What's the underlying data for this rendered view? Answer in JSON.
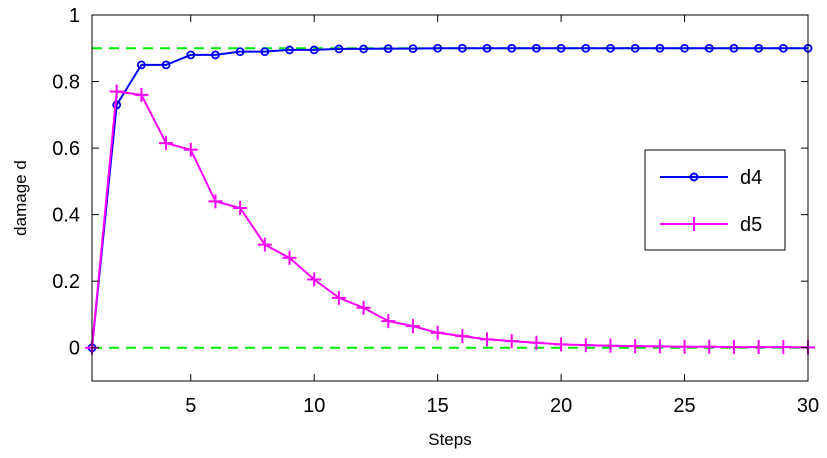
{
  "chart_data": {
    "type": "line",
    "title": "",
    "xlabel": "Steps",
    "ylabel": "damage d",
    "xlim": [
      1,
      30
    ],
    "ylim": [
      -0.1,
      1
    ],
    "xticks": [
      5,
      10,
      15,
      20,
      25,
      30
    ],
    "yticks": [
      0,
      0.2,
      0.4,
      0.6,
      0.8,
      1
    ],
    "xtick_labels": [
      "5",
      "10",
      "15",
      "20",
      "25",
      "30"
    ],
    "ytick_labels": [
      "0",
      "0.2",
      "0.4",
      "0.6",
      "0.8",
      "1"
    ],
    "grid": false,
    "legend_position": "right",
    "series": [
      {
        "name": "d4",
        "color": "#0000ff",
        "marker": "circle",
        "x": [
          1,
          2,
          3,
          4,
          5,
          6,
          7,
          8,
          9,
          10,
          11,
          12,
          13,
          14,
          15,
          16,
          17,
          18,
          19,
          20,
          21,
          22,
          23,
          24,
          25,
          26,
          27,
          28,
          29,
          30
        ],
        "y": [
          0,
          0.73,
          0.85,
          0.85,
          0.88,
          0.88,
          0.89,
          0.89,
          0.895,
          0.895,
          0.898,
          0.898,
          0.899,
          0.899,
          0.9,
          0.9,
          0.9,
          0.9,
          0.9,
          0.9,
          0.9,
          0.9,
          0.9,
          0.9,
          0.9,
          0.9,
          0.9,
          0.9,
          0.9,
          0.9
        ]
      },
      {
        "name": "d5",
        "color": "#ff00ff",
        "marker": "plus",
        "x": [
          1,
          2,
          3,
          4,
          5,
          6,
          7,
          8,
          9,
          10,
          11,
          12,
          13,
          14,
          15,
          16,
          17,
          18,
          19,
          20,
          21,
          22,
          23,
          24,
          25,
          26,
          27,
          28,
          29,
          30
        ],
        "y": [
          0,
          0.77,
          0.76,
          0.615,
          0.595,
          0.44,
          0.42,
          0.31,
          0.27,
          0.205,
          0.15,
          0.12,
          0.08,
          0.065,
          0.045,
          0.035,
          0.025,
          0.02,
          0.015,
          0.01,
          0.008,
          0.006,
          0.005,
          0.004,
          0.003,
          0.003,
          0.002,
          0.002,
          0.002,
          0.001
        ]
      }
    ],
    "reference_lines": [
      {
        "y": 0.9,
        "color": "#00ee00",
        "style": "dashed"
      },
      {
        "y": 0,
        "color": "#00ee00",
        "style": "dashed"
      }
    ]
  }
}
